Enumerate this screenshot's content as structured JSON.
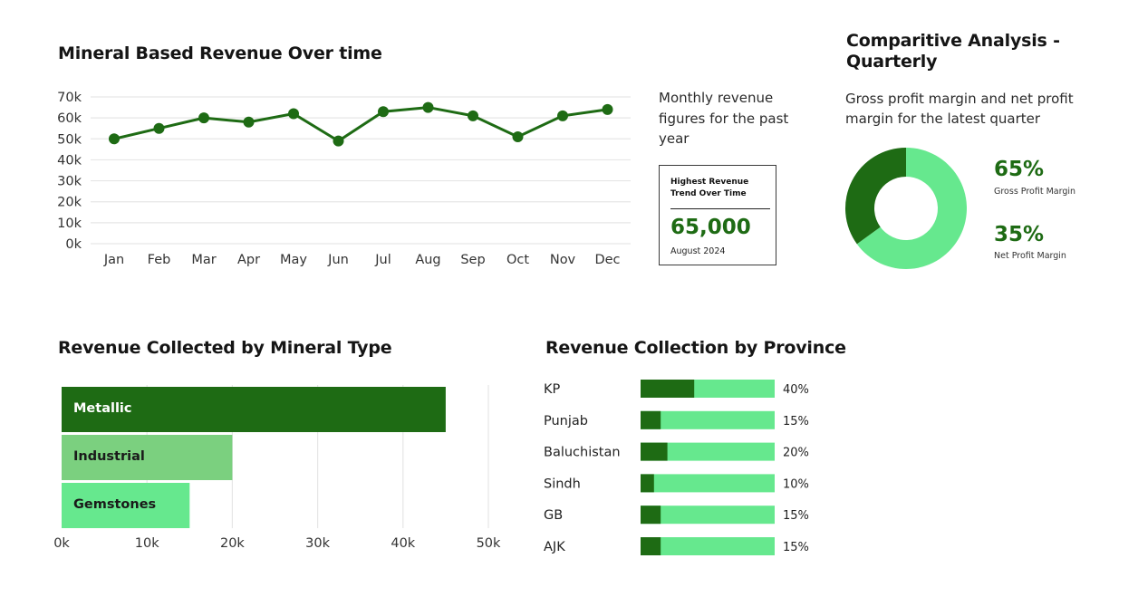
{
  "colors": {
    "dark_green": "#1e6b14",
    "mid_green": "#7bd07f",
    "light_green": "#66e88e",
    "grid": "#e6e6e6"
  },
  "line_section": {
    "title": "Mineral Based Revenue Over time",
    "description": "Monthly revenue figures for the past year",
    "highest_box": {
      "title": "Highest Revenue Trend Over Time",
      "value": "65,000",
      "date": "August 2024"
    }
  },
  "quarterly_section": {
    "title": "Comparitive Analysis - Quarterly",
    "description": "Gross profit margin and net profit margin for the latest quarter",
    "gross": {
      "value": "65%",
      "label": "Gross Profit Margin"
    },
    "net": {
      "value": "35%",
      "label": "Net Profit Margin"
    }
  },
  "mineral_section": {
    "title": "Revenue Collected by Mineral Type"
  },
  "province_section": {
    "title": "Revenue Collection by Province"
  },
  "chart_data": [
    {
      "type": "line",
      "title": "Mineral Based Revenue Over time",
      "categories": [
        "Jan",
        "Feb",
        "Mar",
        "Apr",
        "May",
        "Jun",
        "Jul",
        "Aug",
        "Sep",
        "Oct",
        "Nov",
        "Dec"
      ],
      "values": [
        50000,
        55000,
        60000,
        58000,
        62000,
        49000,
        63000,
        65000,
        61000,
        51000,
        61000,
        64000
      ],
      "yticks": [
        "0k",
        "10k",
        "20k",
        "30k",
        "40k",
        "50k",
        "60k",
        "70k"
      ],
      "ylim": [
        0,
        70000
      ],
      "grid": true
    },
    {
      "type": "pie",
      "title": "Comparitive Analysis - Quarterly",
      "labels": [
        "Gross Profit Margin",
        "Net Profit Margin"
      ],
      "values": [
        65,
        35
      ]
    },
    {
      "type": "bar",
      "orientation": "horizontal",
      "title": "Revenue Collected by Mineral Type",
      "categories": [
        "Metallic",
        "Industrial",
        "Gemstones"
      ],
      "values": [
        45000,
        20000,
        15000
      ],
      "xticks": [
        "0k",
        "10k",
        "20k",
        "30k",
        "40k",
        "50k"
      ],
      "xlim": [
        0,
        50000
      ],
      "grid": true
    },
    {
      "type": "bar",
      "orientation": "horizontal",
      "title": "Revenue Collection by Province",
      "categories": [
        "KP",
        "Punjab",
        "Baluchistan",
        "Sindh",
        "GB",
        "AJK"
      ],
      "values": [
        40,
        15,
        20,
        10,
        15,
        15
      ],
      "value_labels": [
        "40%",
        "15%",
        "20%",
        "10%",
        "15%",
        "15%"
      ],
      "xlim": [
        0,
        100
      ]
    }
  ]
}
